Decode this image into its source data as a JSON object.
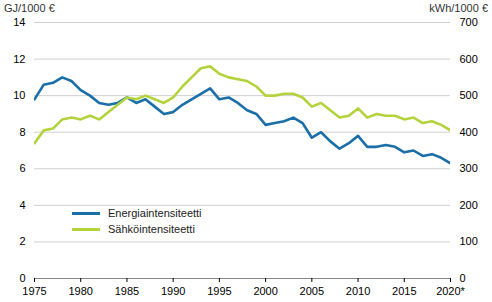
{
  "chart_data": {
    "type": "line",
    "y_label": "GJ/1000 €",
    "y2_label": "kWh/1000 €",
    "x": [
      1975,
      1976,
      1977,
      1978,
      1979,
      1980,
      1981,
      1982,
      1983,
      1984,
      1985,
      1986,
      1987,
      1988,
      1989,
      1990,
      1991,
      1992,
      1993,
      1994,
      1995,
      1996,
      1997,
      1998,
      1999,
      2000,
      2001,
      2002,
      2003,
      2004,
      2005,
      2006,
      2007,
      2008,
      2009,
      2010,
      2011,
      2012,
      2013,
      2014,
      2015,
      2016,
      2017,
      2018,
      2019,
      2020
    ],
    "series": [
      {
        "name": "Energiaintensiteetti",
        "color": "#1b6fa8",
        "values": [
          9.8,
          10.6,
          10.7,
          11.0,
          10.8,
          10.3,
          10.0,
          9.6,
          9.5,
          9.6,
          9.9,
          9.6,
          9.8,
          9.4,
          9.0,
          9.1,
          9.5,
          9.8,
          10.1,
          10.4,
          9.8,
          9.9,
          9.6,
          9.2,
          9.0,
          8.4,
          8.5,
          8.6,
          8.8,
          8.5,
          7.7,
          8.0,
          7.5,
          7.1,
          7.4,
          7.8,
          7.2,
          7.2,
          7.3,
          7.2,
          6.9,
          7.0,
          6.7,
          6.8,
          6.6,
          6.3
        ]
      },
      {
        "name": "Sähköintensiteetti",
        "color": "#b3d33c",
        "axis": "y2",
        "values": [
          370,
          405,
          410,
          435,
          440,
          435,
          445,
          435,
          455,
          475,
          495,
          490,
          500,
          490,
          480,
          495,
          525,
          550,
          575,
          580,
          560,
          550,
          545,
          540,
          525,
          500,
          500,
          505,
          505,
          495,
          470,
          480,
          460,
          440,
          445,
          465,
          440,
          450,
          445,
          445,
          435,
          440,
          425,
          430,
          420,
          405
        ]
      }
    ],
    "xlim": [
      1975,
      2020
    ],
    "xticks": [
      1975,
      1980,
      1985,
      1990,
      1995,
      2000,
      2005,
      2010,
      2015,
      {
        "value": 2020,
        "label": "2020*"
      }
    ],
    "ylim": [
      0,
      14
    ],
    "yticks": [
      0,
      2,
      4,
      6,
      8,
      10,
      12,
      14
    ],
    "y2lim": [
      0,
      700
    ],
    "y2ticks": [
      0,
      100,
      200,
      300,
      400,
      500,
      600,
      700
    ],
    "grid": true,
    "legend": "lower left"
  }
}
